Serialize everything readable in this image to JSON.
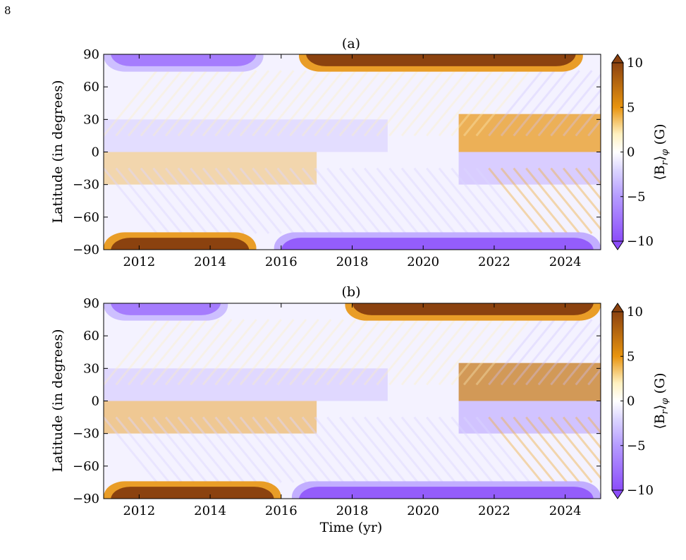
{
  "page_number": "8",
  "colors": {
    "brown": "#8b420f",
    "orange": "#e8940f",
    "cream": "#fff1c0",
    "white": "#ffffff",
    "lavender": "#dcd6ff",
    "purple": "#8c4dfa"
  },
  "chart_data": [
    {
      "type": "heatmap",
      "panel_label": "(a)",
      "xlabel": "",
      "ylabel": "Latitude (in degrees)",
      "xlim": [
        2011,
        2025
      ],
      "ylim": [
        -90,
        90
      ],
      "x_ticks": [
        2012,
        2014,
        2016,
        2018,
        2020,
        2022,
        2024
      ],
      "x_tick_labels": [
        "2012",
        "2014",
        "2016",
        "2018",
        "2020",
        "2022",
        "2024"
      ],
      "y_ticks": [
        90,
        60,
        30,
        0,
        -30,
        -60,
        -90
      ],
      "y_tick_labels": [
        "90",
        "60",
        "30",
        "0",
        "−30",
        "−60",
        "−90"
      ],
      "colorbar": {
        "label": "⟨B_r⟩_φ (G)",
        "label_main": "⟨B",
        "label_sub1": "r",
        "label_close": "⟩",
        "label_sub2": "φ",
        "label_unit": "(G)",
        "range": [
          -10,
          10
        ],
        "ticks": [
          10,
          5,
          0,
          -5,
          -10
        ],
        "tick_labels": [
          "10",
          "5",
          "0",
          "−5",
          "−10"
        ]
      },
      "description_features": {
        "north_polar_field": [
          {
            "start": 2011,
            "end": 2015.5,
            "value": -7
          },
          {
            "start": 2016.5,
            "end": 2024.5,
            "value": 10
          }
        ],
        "south_polar_field": [
          {
            "start": 2011,
            "end": 2015.3,
            "value": 10
          },
          {
            "start": 2015.8,
            "end": 2025,
            "value": -9
          }
        ],
        "cycle24_north_band": {
          "start": 2011,
          "end": 2019,
          "value": -2.5
        },
        "cycle24_south_band": {
          "start": 2011,
          "end": 2017,
          "value": 4
        },
        "cycle25_north_band": {
          "start": 2021,
          "end": 2025,
          "value": 5
        },
        "cycle25_south_band": {
          "start": 2021,
          "end": 2025,
          "value": -4
        }
      }
    },
    {
      "type": "heatmap",
      "panel_label": "(b)",
      "xlabel": "Time (yr)",
      "ylabel": "Latitude (in degrees)",
      "xlim": [
        2011,
        2025
      ],
      "ylim": [
        -90,
        90
      ],
      "x_ticks": [
        2012,
        2014,
        2016,
        2018,
        2020,
        2022,
        2024
      ],
      "x_tick_labels": [
        "2012",
        "2014",
        "2016",
        "2018",
        "2020",
        "2022",
        "2024"
      ],
      "y_ticks": [
        90,
        60,
        30,
        0,
        -30,
        -60,
        -90
      ],
      "y_tick_labels": [
        "90",
        "60",
        "30",
        "0",
        "−30",
        "−60",
        "−90"
      ],
      "colorbar": {
        "label": "⟨B_r⟩_φ (G)",
        "label_main": "⟨B",
        "label_sub1": "r",
        "label_close": "⟩",
        "label_sub2": "φ",
        "label_unit": "(G)",
        "range": [
          -10,
          10
        ],
        "ticks": [
          10,
          5,
          0,
          -5,
          -10
        ],
        "tick_labels": [
          "10",
          "5",
          "0",
          "−5",
          "−10"
        ]
      },
      "description_features": {
        "north_polar_field": [
          {
            "start": 2011,
            "end": 2014.5,
            "value": -7
          },
          {
            "start": 2017.8,
            "end": 2025,
            "value": 10
          }
        ],
        "south_polar_field": [
          {
            "start": 2011,
            "end": 2016,
            "value": 10
          },
          {
            "start": 2016.3,
            "end": 2025,
            "value": -9
          }
        ],
        "cycle24_north_band": {
          "start": 2011,
          "end": 2019,
          "value": -3
        },
        "cycle24_south_band": {
          "start": 2011,
          "end": 2017,
          "value": 5
        },
        "cycle25_north_band": {
          "start": 2021,
          "end": 2025,
          "value": 7
        },
        "cycle25_south_band": {
          "start": 2021,
          "end": 2025,
          "value": -5
        }
      }
    }
  ]
}
